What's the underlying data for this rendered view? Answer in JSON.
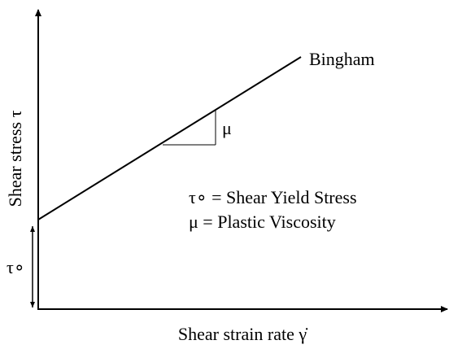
{
  "diagram": {
    "curve_label": "Bingham",
    "slope_label": "μ",
    "legend": [
      "τ∘ = Shear Yield Stress",
      "μ = Plastic Viscosity"
    ],
    "y_axis_label": "Shear stress τ",
    "intercept_label": "τ∘",
    "x_axis_label": "Shear strain rate γ̇"
  }
}
